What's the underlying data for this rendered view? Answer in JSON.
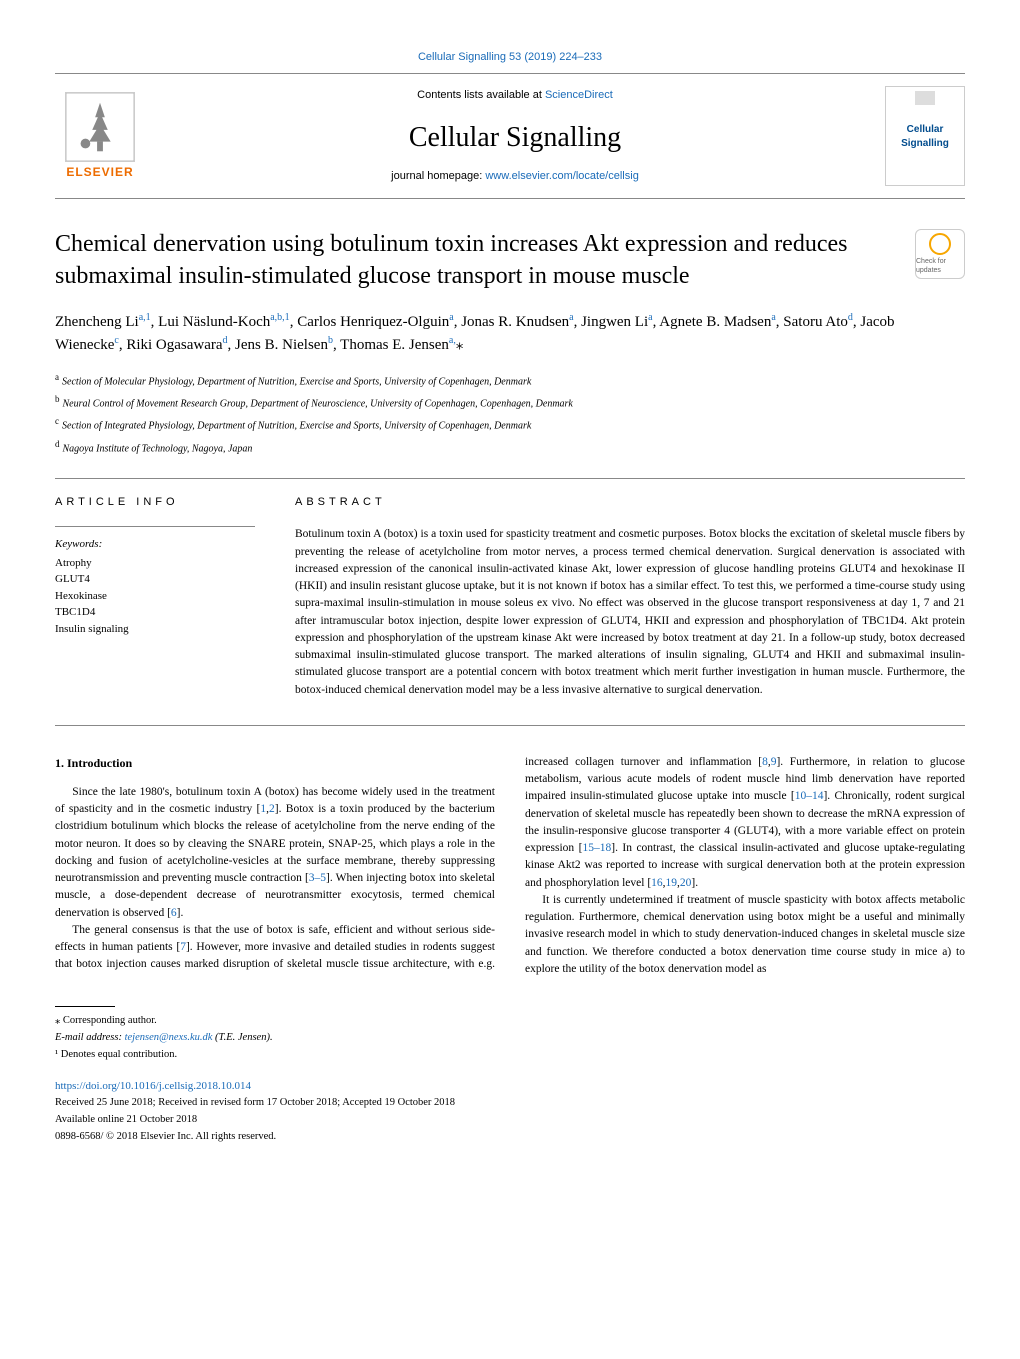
{
  "top_link": "Cellular Signalling 53 (2019) 224–233",
  "header": {
    "publisher": "ELSEVIER",
    "contents_prefix": "Contents lists available at ",
    "contents_link": "ScienceDirect",
    "journal": "Cellular Signalling",
    "homepage_prefix": "journal homepage: ",
    "homepage_url": "www.elsevier.com/locate/cellsig",
    "cover_label": "Cellular Signalling"
  },
  "check_updates": "Check for updates",
  "title": "Chemical denervation using botulinum toxin increases Akt expression and reduces submaximal insulin-stimulated glucose transport in mouse muscle",
  "authors_html": "Zhencheng Li<sup>a,1</sup>, Lui Näslund-Koch<sup>a,b,1</sup>, Carlos Henriquez-Olguin<sup>a</sup>, Jonas R. Knudsen<sup>a</sup>, Jingwen Li<sup>a</sup>, Agnete B. Madsen<sup>a</sup>, Satoru Ato<sup>d</sup>, Jacob Wienecke<sup>c</sup>, Riki Ogasawara<sup>d</sup>, Jens B. Nielsen<sup>b</sup>, Thomas E. Jensen<sup>a,</sup><span class='star'>⁎</span>",
  "affiliations": [
    {
      "sup": "a",
      "text": "Section of Molecular Physiology, Department of Nutrition, Exercise and Sports, University of Copenhagen, Denmark"
    },
    {
      "sup": "b",
      "text": "Neural Control of Movement Research Group, Department of Neuroscience, University of Copenhagen, Copenhagen, Denmark"
    },
    {
      "sup": "c",
      "text": "Section of Integrated Physiology, Department of Nutrition, Exercise and Sports, University of Copenhagen, Denmark"
    },
    {
      "sup": "d",
      "text": "Nagoya Institute of Technology, Nagoya, Japan"
    }
  ],
  "article_info_heading": "ARTICLE INFO",
  "abstract_heading": "ABSTRACT",
  "keywords_label": "Keywords:",
  "keywords": [
    "Atrophy",
    "GLUT4",
    "Hexokinase",
    "TBC1D4",
    "Insulin signaling"
  ],
  "abstract": "Botulinum toxin A (botox) is a toxin used for spasticity treatment and cosmetic purposes. Botox blocks the excitation of skeletal muscle fibers by preventing the release of acetylcholine from motor nerves, a process termed chemical denervation. Surgical denervation is associated with increased expression of the canonical insulin-activated kinase Akt, lower expression of glucose handling proteins GLUT4 and hexokinase II (HKII) and insulin resistant glucose uptake, but it is not known if botox has a similar effect. To test this, we performed a time-course study using supra-maximal insulin-stimulation in mouse soleus ex vivo. No effect was observed in the glucose transport responsiveness at day 1, 7 and 21 after intramuscular botox injection, despite lower expression of GLUT4, HKII and expression and phosphorylation of TBC1D4. Akt protein expression and phosphorylation of the upstream kinase Akt were increased by botox treatment at day 21. In a follow-up study, botox decreased submaximal insulin-stimulated glucose transport. The marked alterations of insulin signaling, GLUT4 and HKII and submaximal insulin-stimulated glucose transport are a potential concern with botox treatment which merit further investigation in human muscle. Furthermore, the botox-induced chemical denervation model may be a less invasive alternative to surgical denervation.",
  "section1_heading": "1. Introduction",
  "body": {
    "p1": "Since the late 1980's, botulinum toxin A (botox) has become widely used in the treatment of spasticity and in the cosmetic industry [",
    "c1": "1",
    "p1b": ",",
    "c2": "2",
    "p2": "]. Botox is a toxin produced by the bacterium clostridium botulinum which blocks the release of acetylcholine from the nerve ending of the motor neuron. It does so by cleaving the SNARE protein, SNAP-25, which plays a role in the docking and fusion of acetylcholine-vesicles at the surface membrane, thereby suppressing neurotransmission and preventing muscle contraction [",
    "c3": "3–5",
    "p3": "]. When injecting botox into skeletal muscle, a dose-dependent decrease of neurotransmitter exocytosis, termed chemical denervation is observed [",
    "c4": "6",
    "p4": "].",
    "p5": "The general consensus is that the use of botox is safe, efficient and without serious side-effects in human patients [",
    "c5": "7",
    "p6": "]. However, more invasive and detailed studies in rodents suggest that botox injection causes marked disruption of skeletal muscle tissue architecture, with",
    "p7": "e.g. increased collagen turnover and inflammation [",
    "c6": "8",
    "p7b": ",",
    "c7": "9",
    "p8": "]. Furthermore, in relation to glucose metabolism, various acute models of rodent muscle hind limb denervation have reported impaired insulin-stimulated glucose uptake into muscle [",
    "c8": "10–14",
    "p9": "]. Chronically, rodent surgical denervation of skeletal muscle has repeatedly been shown to decrease the mRNA expression of the insulin-responsive glucose transporter 4 (GLUT4), with a more variable effect on protein expression [",
    "c9": "15–18",
    "p10": "]. In contrast, the classical insulin-activated and glucose uptake-regulating kinase Akt2 was reported to increase with surgical denervation both at the protein expression and phosphorylation level [",
    "c10": "16",
    "p10b": ",",
    "c11": "19",
    "p10c": ",",
    "c12": "20",
    "p11": "].",
    "p12": "It is currently undetermined if treatment of muscle spasticity with botox affects metabolic regulation. Furthermore, chemical denervation using botox might be a useful and minimally invasive research model in which to study denervation-induced changes in skeletal muscle size and function. We therefore conducted a botox denervation time course study in mice a) to explore the utility of the botox denervation model as"
  },
  "footer": {
    "corresponding": "⁎ Corresponding author.",
    "email_label": "E-mail address: ",
    "email": "tejensen@nexs.ku.dk",
    "email_suffix": " (T.E. Jensen).",
    "equal": "¹ Denotes equal contribution.",
    "doi": "https://doi.org/10.1016/j.cellsig.2018.10.014",
    "received": "Received 25 June 2018; Received in revised form 17 October 2018; Accepted 19 October 2018",
    "available": "Available online 21 October 2018",
    "copyright": "0898-6568/ © 2018 Elsevier Inc. All rights reserved."
  }
}
